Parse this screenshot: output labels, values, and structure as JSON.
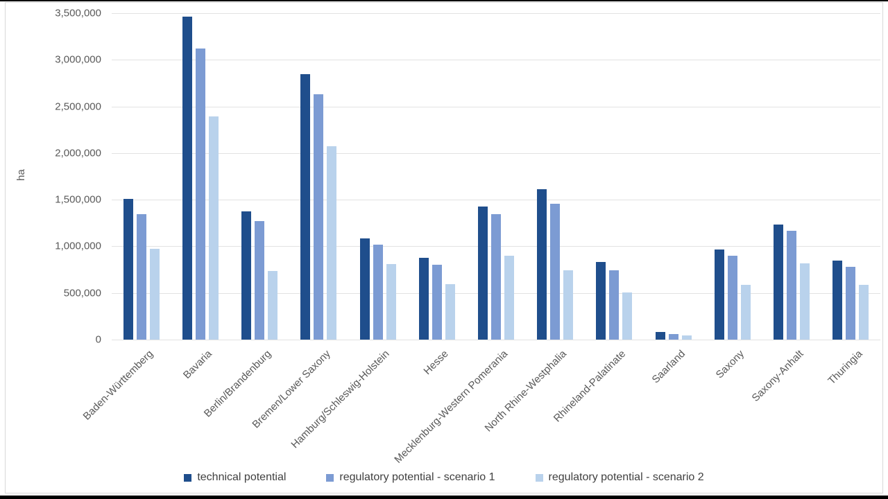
{
  "chart_data": {
    "type": "bar",
    "title": "",
    "xlabel": "",
    "ylabel": "ha",
    "ylim": [
      0,
      3500000
    ],
    "ytick_interval": 500000,
    "grid": true,
    "legend_position": "bottom",
    "categories": [
      "Baden-Württemberg",
      "Bavaria",
      "Berlin/Brandenburg",
      "Bremen/Lower Saxony",
      "Hamburg/Schleswig-Holstein",
      "Hesse",
      "Mecklenburg-Western Pomerania",
      "North Rhine-Westphalia",
      "Rhineland-Palatinate",
      "Saarland",
      "Saxony",
      "Saxony-Anhalt",
      "Thuringia"
    ],
    "series": [
      {
        "name": "technical potential",
        "color": "#1f4e8c",
        "values": [
          1510000,
          3460000,
          1375000,
          2845000,
          1085000,
          880000,
          1430000,
          1615000,
          830000,
          80000,
          965000,
          1230000,
          845000
        ]
      },
      {
        "name": "regulatory potential - scenario 1",
        "color": "#7c9bd3",
        "values": [
          1345000,
          3120000,
          1270000,
          2630000,
          1020000,
          800000,
          1345000,
          1460000,
          740000,
          60000,
          900000,
          1165000,
          780000
        ]
      },
      {
        "name": "regulatory potential - scenario 2",
        "color": "#b9d2ec",
        "values": [
          975000,
          2395000,
          735000,
          2075000,
          810000,
          595000,
          900000,
          740000,
          505000,
          45000,
          585000,
          820000,
          585000
        ]
      }
    ]
  }
}
